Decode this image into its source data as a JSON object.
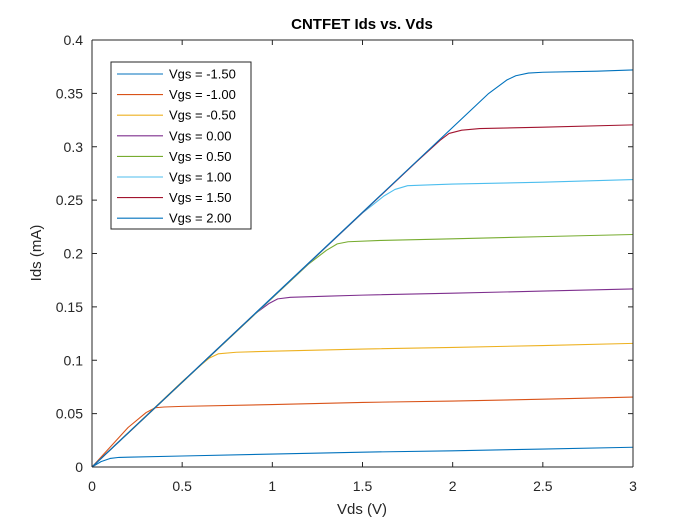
{
  "chart_data": {
    "type": "line",
    "title": "CNTFET Ids vs. Vds",
    "xlabel": "Vds (V)",
    "ylabel": "Ids (mA)",
    "xlim": [
      0,
      3
    ],
    "ylim": [
      0,
      0.4
    ],
    "xticks": [
      0,
      0.5,
      1,
      1.5,
      2,
      2.5,
      3
    ],
    "xtick_labels": [
      "0",
      "0.5",
      "1",
      "1.5",
      "2",
      "2.5",
      "3"
    ],
    "yticks": [
      0,
      0.05,
      0.1,
      0.15,
      0.2,
      0.25,
      0.3,
      0.35,
      0.4
    ],
    "ytick_labels": [
      "0",
      "0.05",
      "0.1",
      "0.15",
      "0.2",
      "0.25",
      "0.3",
      "0.35",
      "0.4"
    ],
    "grid": false,
    "legend_position": "top-left",
    "series": [
      {
        "name": "Vgs = -1.50",
        "color": "#0072BD",
        "points": [
          [
            0,
            0
          ],
          [
            0.05,
            0.005
          ],
          [
            0.1,
            0.008
          ],
          [
            0.15,
            0.009
          ],
          [
            0.2,
            0.0092
          ],
          [
            0.5,
            0.0103
          ],
          [
            1.0,
            0.0121
          ],
          [
            1.5,
            0.0139
          ],
          [
            2.0,
            0.0152
          ],
          [
            2.5,
            0.0168
          ],
          [
            3.0,
            0.0185
          ]
        ]
      },
      {
        "name": "Vgs = -1.00",
        "color": "#D95319",
        "points": [
          [
            0,
            0
          ],
          [
            0.2,
            0.037
          ],
          [
            0.3,
            0.051
          ],
          [
            0.35,
            0.0555
          ],
          [
            0.4,
            0.0562
          ],
          [
            0.5,
            0.0568
          ],
          [
            1.0,
            0.0585
          ],
          [
            1.5,
            0.0605
          ],
          [
            2.0,
            0.0618
          ],
          [
            2.5,
            0.0635
          ],
          [
            3.0,
            0.0655
          ]
        ]
      },
      {
        "name": "Vgs = -0.50",
        "color": "#EDB120",
        "points": [
          [
            0,
            0
          ],
          [
            0.5,
            0.08
          ],
          [
            0.6,
            0.095
          ],
          [
            0.65,
            0.102
          ],
          [
            0.7,
            0.106
          ],
          [
            0.8,
            0.1075
          ],
          [
            1.0,
            0.1085
          ],
          [
            1.5,
            0.1105
          ],
          [
            2.0,
            0.112
          ],
          [
            2.5,
            0.1138
          ],
          [
            3.0,
            0.1158
          ]
        ]
      },
      {
        "name": "Vgs = 0.00",
        "color": "#7E2F8E",
        "points": [
          [
            0,
            0
          ],
          [
            0.9,
            0.143
          ],
          [
            0.98,
            0.153
          ],
          [
            1.03,
            0.1575
          ],
          [
            1.1,
            0.159
          ],
          [
            1.3,
            0.16
          ],
          [
            1.5,
            0.161
          ],
          [
            2.0,
            0.1628
          ],
          [
            2.5,
            0.1648
          ],
          [
            3.0,
            0.1668
          ]
        ]
      },
      {
        "name": "Vgs = 0.50",
        "color": "#77AC30",
        "points": [
          [
            0,
            0
          ],
          [
            1.2,
            0.19
          ],
          [
            1.3,
            0.203
          ],
          [
            1.36,
            0.209
          ],
          [
            1.42,
            0.211
          ],
          [
            1.6,
            0.2122
          ],
          [
            2.0,
            0.2138
          ],
          [
            2.5,
            0.2158
          ],
          [
            3.0,
            0.2178
          ]
        ]
      },
      {
        "name": "Vgs = 1.00",
        "color": "#4DBEEE",
        "points": [
          [
            0,
            0
          ],
          [
            1.5,
            0.238
          ],
          [
            1.62,
            0.254
          ],
          [
            1.68,
            0.26
          ],
          [
            1.75,
            0.2635
          ],
          [
            1.9,
            0.2645
          ],
          [
            2.0,
            0.265
          ],
          [
            2.5,
            0.2668
          ],
          [
            3.0,
            0.2693
          ]
        ]
      },
      {
        "name": "Vgs = 1.50",
        "color": "#A2142F",
        "points": [
          [
            0,
            0
          ],
          [
            1.8,
            0.286
          ],
          [
            1.93,
            0.306
          ],
          [
            1.98,
            0.3125
          ],
          [
            2.05,
            0.3155
          ],
          [
            2.15,
            0.317
          ],
          [
            2.5,
            0.3183
          ],
          [
            3.0,
            0.3205
          ]
        ]
      },
      {
        "name": "Vgs = 2.00",
        "color": "#0072BD",
        "points": [
          [
            0,
            0
          ],
          [
            2.2,
            0.35
          ],
          [
            2.3,
            0.3625
          ],
          [
            2.35,
            0.3665
          ],
          [
            2.42,
            0.369
          ],
          [
            2.5,
            0.3698
          ],
          [
            2.8,
            0.3708
          ],
          [
            3.0,
            0.372
          ]
        ]
      }
    ]
  }
}
